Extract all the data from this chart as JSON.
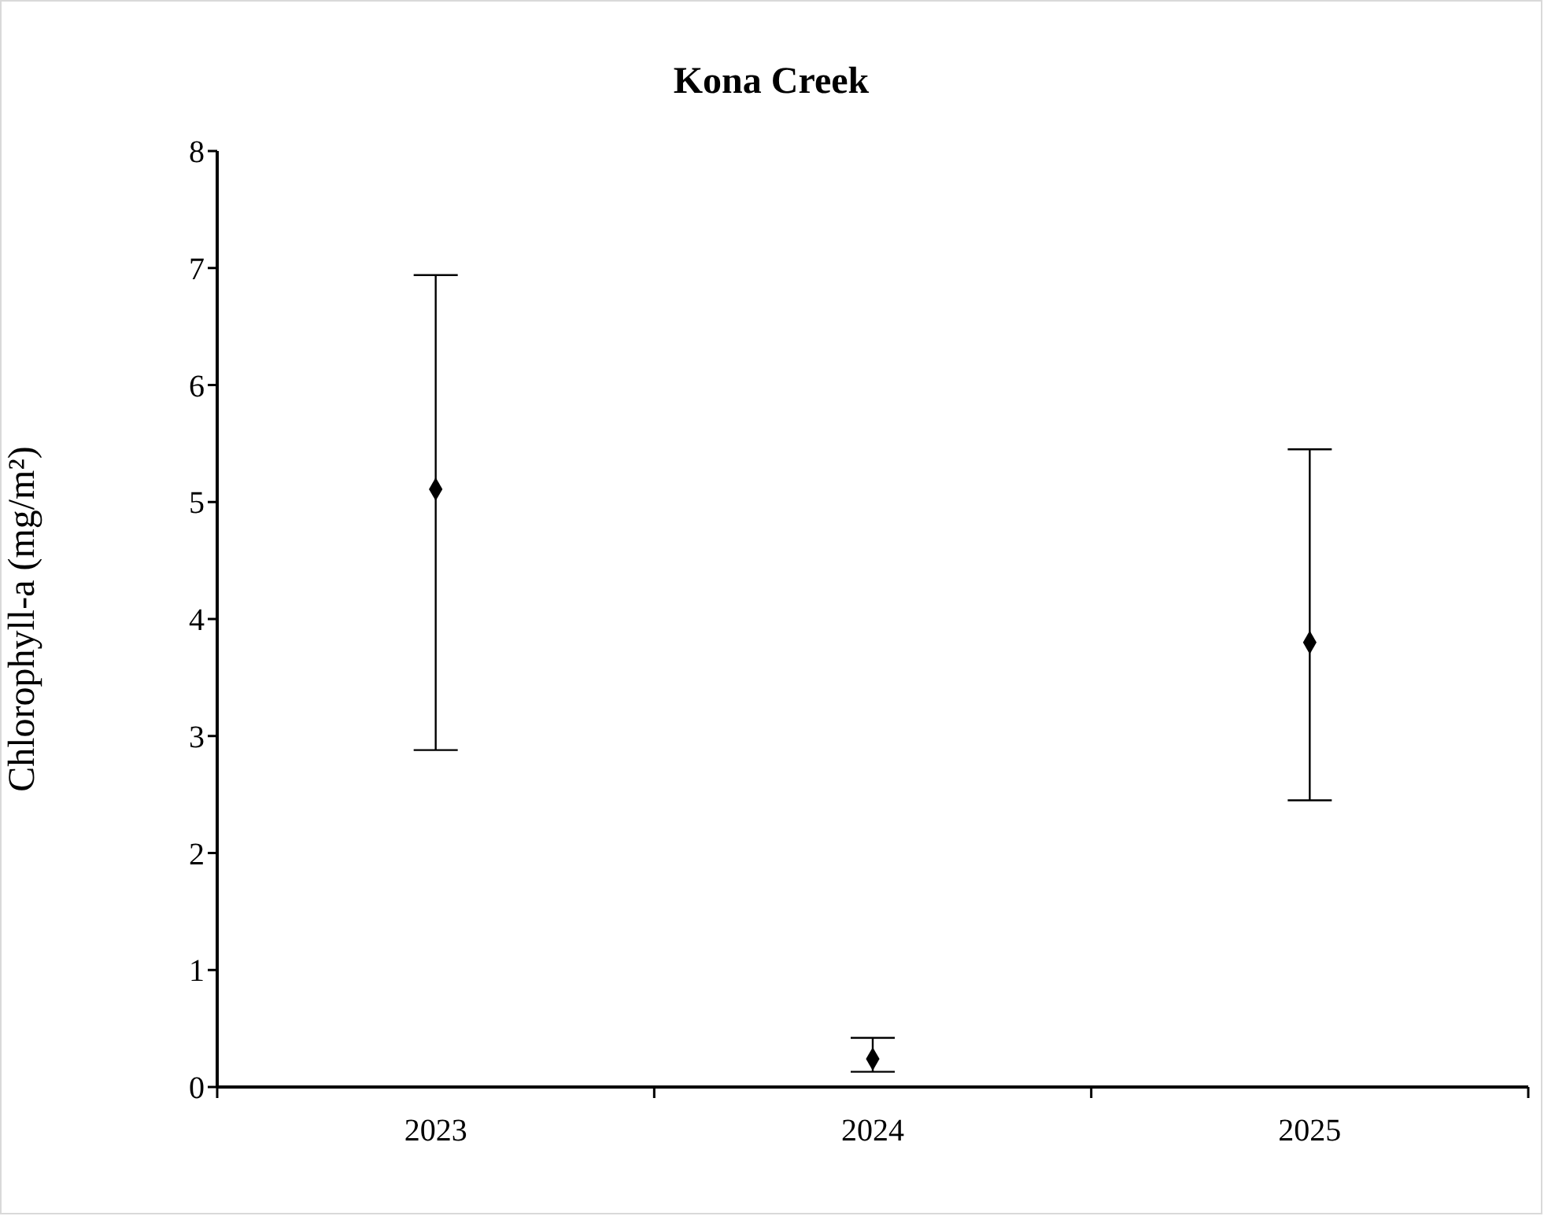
{
  "chart_data": {
    "type": "scatter",
    "title": "Kona Creek",
    "ylabel": "Chlorophyll-a (mg/m²)",
    "categories": [
      "2023",
      "2024",
      "2025"
    ],
    "values": [
      5.11,
      0.24,
      3.8
    ],
    "errors": [
      [
        2.88,
        6.94
      ],
      [
        0.13,
        0.42
      ],
      [
        2.45,
        5.45
      ]
    ],
    "color": "#000000",
    "marker": "diamond",
    "ylim": [
      0,
      8
    ],
    "yticks": [
      0,
      1,
      2,
      3,
      4,
      5,
      6,
      7,
      8
    ],
    "grid": false,
    "legend": false
  }
}
